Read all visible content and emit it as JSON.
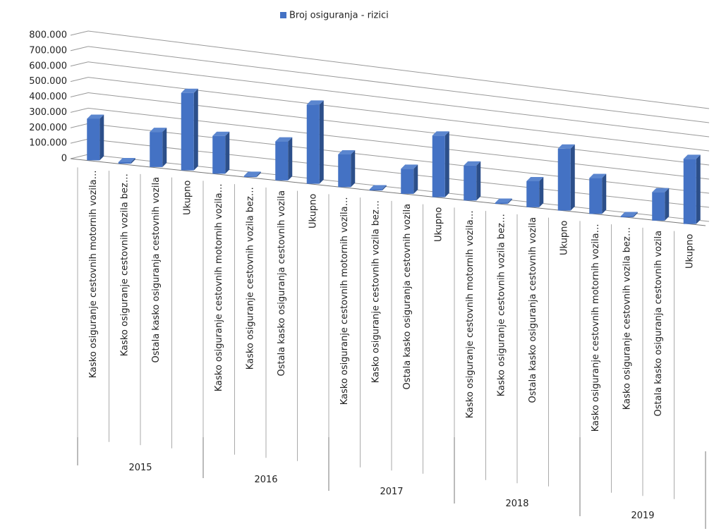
{
  "chart_data": {
    "type": "bar3d",
    "groups": [
      "2015",
      "2016",
      "2017",
      "2018",
      "2019"
    ],
    "categories": [
      "Kasko osiguranje cestovnih motornih vozila…",
      "Kasko osiguranje cestovnih vozila bez…",
      "Ostala kasko osiguranja cestovnih vozila",
      "Ukupno",
      "Kasko osiguranje cestovnih motornih vozila…",
      "Kasko osiguranje cestovnih vozila bez…",
      "Ostala kasko osiguranja cestovnih vozila",
      "Ukupno",
      "Kasko osiguranje cestovnih motornih vozila…",
      "Kasko osiguranje cestovnih vozila bez…",
      "Ostala kasko osiguranja cestovnih vozila",
      "Ukupno",
      "Kasko osiguranje cestovnih motornih vozila…",
      "Kasko osiguranje cestovnih vozila bez…",
      "Ostala kasko osiguranja cestovnih vozila",
      "Ukupno",
      "Kasko osiguranje cestovnih motornih vozila…",
      "Kasko osiguranje cestovnih vozila bez…",
      "Ostala kasko osiguranja cestovnih vozila",
      "Ukupno"
    ],
    "series": [
      {
        "name": "Broj osiguranja - rizici",
        "color": "#4472c4",
        "values": [
          270000,
          10000,
          230000,
          510000,
          250000,
          8000,
          260000,
          530000,
          220000,
          8000,
          170000,
          420000,
          240000,
          8000,
          180000,
          430000,
          250000,
          8000,
          200000,
          460000
        ]
      }
    ],
    "ylim": [
      0,
      800000
    ],
    "yticks": [
      0,
      {
        "value": 100000,
        "label": "100.000"
      },
      {
        "value": 200000,
        "label": "200.000"
      },
      {
        "value": 300000,
        "label": "300.000"
      },
      {
        "value": 400000,
        "label": "400.000"
      },
      {
        "value": 500000,
        "label": "500.000"
      },
      {
        "value": 600000,
        "label": "600.000"
      },
      {
        "value": 700000,
        "label": "700.000"
      },
      {
        "value": 800000,
        "label": "800.000"
      }
    ],
    "grid": true,
    "legend": "top"
  }
}
